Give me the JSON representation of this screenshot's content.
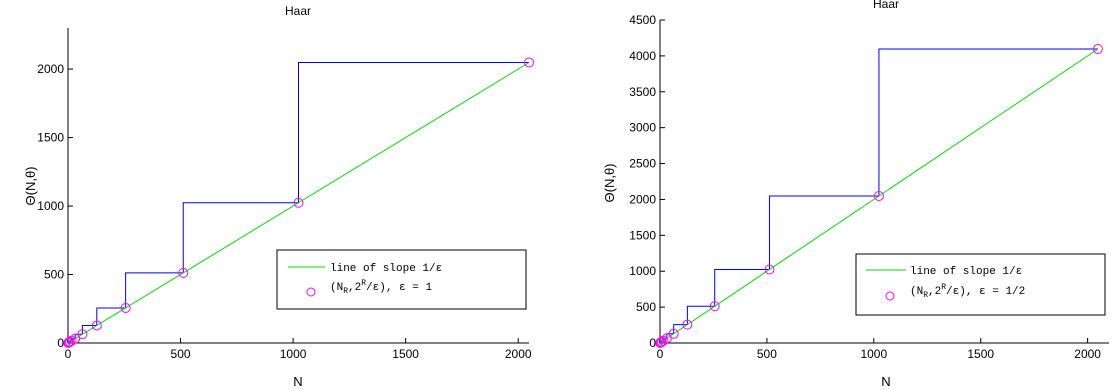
{
  "chart_data": [
    {
      "type": "line",
      "title": "Haar",
      "xlabel": "N",
      "ylabel": "Θ(N,θ)",
      "xlim": [
        0,
        2048
      ],
      "ylim": [
        0,
        2300
      ],
      "xticks": [
        0,
        500,
        1000,
        1500,
        2000
      ],
      "yticks": [
        0,
        500,
        1000,
        1500,
        2000
      ],
      "xtick_labels": [
        "0",
        "500",
        "1000",
        "1500",
        "2000"
      ],
      "ytick_labels": [
        "0",
        "500",
        "1000",
        "1500",
        "2000"
      ],
      "series": [
        {
          "kind": "step",
          "color": "#0000ff",
          "x": [
            1,
            2,
            2,
            4,
            4,
            8,
            8,
            16,
            16,
            32,
            32,
            64,
            64,
            128,
            128,
            256,
            256,
            512,
            512,
            1024,
            1024,
            2048
          ],
          "y": [
            2,
            2,
            4,
            4,
            8,
            8,
            16,
            16,
            32,
            32,
            64,
            64,
            128,
            128,
            256,
            256,
            512,
            512,
            1024,
            1024,
            2048,
            2048
          ]
        },
        {
          "name": "line of slope 1/ε",
          "kind": "line",
          "color": "#00dd00",
          "x": [
            0,
            2048
          ],
          "y": [
            0,
            2048
          ]
        },
        {
          "name": "(N_R, 2^R/ε), ε = 1",
          "kind": "scatter",
          "color": "#ff00ff",
          "x": [
            1,
            2,
            4,
            8,
            16,
            32,
            64,
            128,
            256,
            512,
            1024,
            2048
          ],
          "y": [
            1,
            2,
            4,
            8,
            16,
            32,
            64,
            128,
            256,
            512,
            1024,
            2048
          ]
        }
      ],
      "legend": {
        "placement": "lower-right",
        "line_text": "line of slope 1/ε",
        "marker_text_a": "(N",
        "marker_sub_a": "R",
        "marker_text_b": ",2",
        "marker_sup": "R",
        "marker_text_c": "/ε), ε = 1"
      }
    },
    {
      "type": "line",
      "title": "Haar",
      "xlabel": "N",
      "ylabel": "Θ(N,θ)",
      "xlim": [
        0,
        2100
      ],
      "ylim": [
        0,
        4500
      ],
      "xticks": [
        0,
        500,
        1000,
        1500,
        2000
      ],
      "yticks": [
        0,
        500,
        1000,
        1500,
        2000,
        2500,
        3000,
        3500,
        4000,
        4500
      ],
      "xtick_labels": [
        "0",
        "500",
        "1000",
        "1500",
        "2000"
      ],
      "ytick_labels": [
        "0",
        "500",
        "1000",
        "1500",
        "2000",
        "2500",
        "3000",
        "3500",
        "4000",
        "4500"
      ],
      "series": [
        {
          "kind": "step",
          "color": "#0000ff",
          "x": [
            1,
            2,
            2,
            4,
            4,
            8,
            8,
            16,
            16,
            32,
            32,
            64,
            64,
            128,
            128,
            256,
            256,
            512,
            512,
            1024,
            1024,
            2048
          ],
          "y": [
            4,
            4,
            8,
            8,
            16,
            16,
            32,
            32,
            64,
            64,
            128,
            128,
            256,
            256,
            512,
            512,
            1024,
            1024,
            2048,
            2048,
            4096,
            4096
          ]
        },
        {
          "name": "line of slope 1/ε",
          "kind": "line",
          "color": "#00dd00",
          "x": [
            0,
            2048
          ],
          "y": [
            0,
            4096
          ]
        },
        {
          "name": "(N_R, 2^R/ε), ε = 1/2",
          "kind": "scatter",
          "color": "#ff00ff",
          "x": [
            1,
            2,
            4,
            8,
            16,
            32,
            64,
            128,
            256,
            512,
            1024,
            2048
          ],
          "y": [
            2,
            4,
            8,
            16,
            32,
            64,
            128,
            256,
            512,
            1024,
            2048,
            4096
          ]
        }
      ],
      "legend": {
        "placement": "lower-right",
        "line_text": "line of slope 1/ε",
        "marker_text_a": "(N",
        "marker_sub_a": "R",
        "marker_text_b": ",2",
        "marker_sup": "R",
        "marker_text_c": "/ε), ε = 1/2"
      }
    }
  ]
}
